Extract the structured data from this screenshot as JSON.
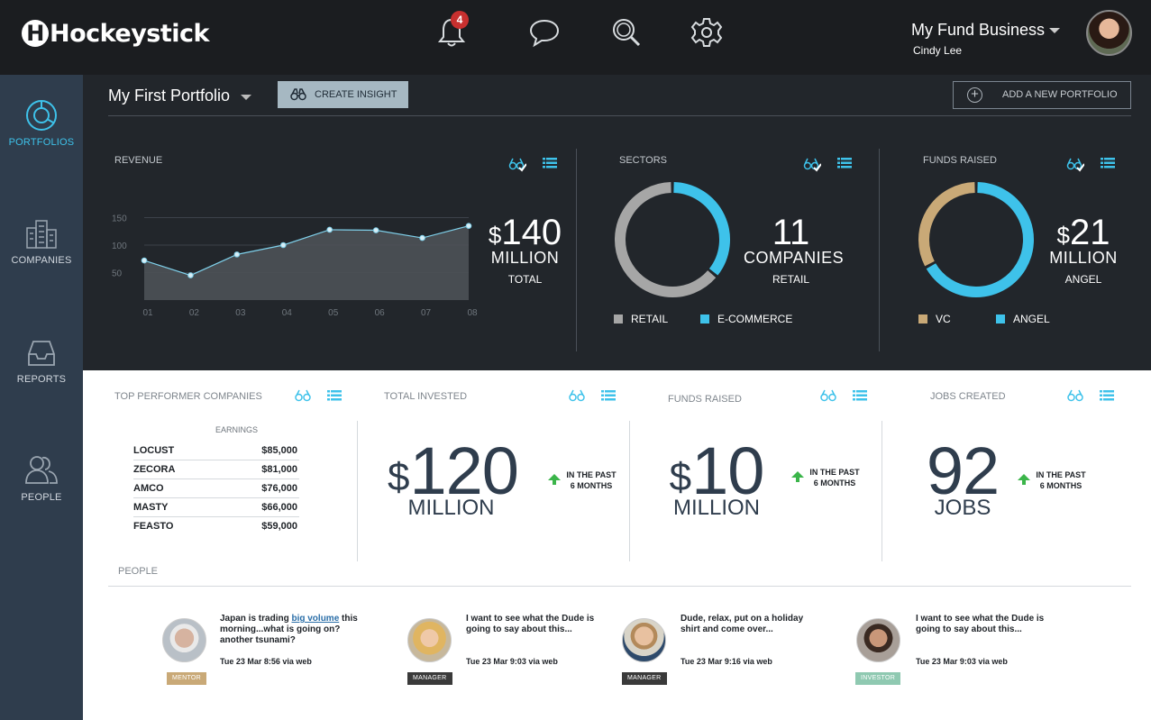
{
  "topbar": {
    "logo": "Hockeystick",
    "notification_count": "4",
    "account_name": "My Fund Business",
    "user_name": "Cindy Lee"
  },
  "sidebar": {
    "items": [
      {
        "label": "PORTFOLIOS",
        "icon": "portfolio-chart-icon"
      },
      {
        "label": "COMPANIES",
        "icon": "building-icon"
      },
      {
        "label": "REPORTS",
        "icon": "inbox-icon"
      },
      {
        "label": "PEOPLE",
        "icon": "people-icon"
      }
    ]
  },
  "toolbar": {
    "portfolio_title": "My First Portfolio",
    "create_insight": "CREATE INSIGHT",
    "add_portfolio": "ADD A NEW PORTFOLIO"
  },
  "revenue": {
    "title": "REVENUE",
    "currency": "$",
    "value": "140",
    "unit": "MILLION",
    "sub": "TOTAL"
  },
  "sectors": {
    "title": "SECTORS",
    "value": "11",
    "unit": "COMPANIES",
    "sub": "RETAIL",
    "legend": [
      {
        "label": "RETAIL",
        "color": "#a6a6a6"
      },
      {
        "label": "E-COMMERCE",
        "color": "#3ec2ea"
      }
    ]
  },
  "funds_top": {
    "title": "FUNDS RAISED",
    "currency": "$",
    "value": "21",
    "unit": "MILLION",
    "sub": "ANGEL",
    "legend": [
      {
        "label": "VC",
        "color": "#c9a977"
      },
      {
        "label": "ANGEL",
        "color": "#3ec2ea"
      }
    ]
  },
  "chart_data": [
    {
      "type": "area",
      "title": "REVENUE",
      "categories": [
        "01",
        "02",
        "03",
        "04",
        "05",
        "06",
        "07",
        "08"
      ],
      "values": [
        72,
        45,
        83,
        100,
        128,
        127,
        113,
        135
      ],
      "yticks": [
        50,
        100,
        150
      ],
      "ylim": [
        0,
        180
      ]
    },
    {
      "type": "pie",
      "title": "SECTORS",
      "labels": [
        "RETAIL",
        "E-COMMERCE"
      ],
      "values": [
        64,
        36
      ],
      "colors": [
        "#a6a6a6",
        "#3ec2ea"
      ]
    },
    {
      "type": "pie",
      "title": "FUNDS RAISED",
      "labels": [
        "VC",
        "ANGEL"
      ],
      "values": [
        33,
        67
      ],
      "colors": [
        "#c9a977",
        "#3ec2ea"
      ]
    }
  ],
  "top_performers": {
    "title": "TOP PERFORMER COMPANIES",
    "column": "EARNINGS",
    "rows": [
      {
        "name": "LOCUST",
        "earnings": "$85,000"
      },
      {
        "name": "ZECORA",
        "earnings": "$81,000"
      },
      {
        "name": "AMCO",
        "earnings": "$76,000"
      },
      {
        "name": "MASTY",
        "earnings": "$66,000"
      },
      {
        "name": "FEASTO",
        "earnings": "$59,000"
      }
    ]
  },
  "total_invested": {
    "title": "TOTAL INVESTED",
    "currency": "$",
    "value": "120",
    "unit": "MILLION",
    "trend_line1": "IN THE PAST",
    "trend_line2": "6 MONTHS"
  },
  "funds_raised": {
    "title": "FUNDS RAISED",
    "currency": "$",
    "value": "10",
    "unit": "MILLION",
    "trend_line1": "IN THE PAST",
    "trend_line2": "6 MONTHS"
  },
  "jobs_created": {
    "title": "JOBS CREATED",
    "value": "92",
    "unit": "JOBS",
    "trend_line1": "IN THE PAST",
    "trend_line2": "6 MONTHS"
  },
  "people": {
    "title": "PEOPLE",
    "items": [
      {
        "msg_before": "Japan is trading ",
        "msg_link": "big volume",
        "msg_after": " this morning...what is going on? another tsunami?",
        "time": "Tue 23 Mar 8:56 via web",
        "role": "MENTOR",
        "role_color": "#c9a977"
      },
      {
        "msg_before": "I want to see what the Dude is going to say about this...",
        "msg_link": "",
        "msg_after": "",
        "time": "Tue 23 Mar 9:03 via web",
        "role": "MANAGER",
        "role_color": "#3a3a3a"
      },
      {
        "msg_before": "Dude, relax, put on a holiday shirt and come over...",
        "msg_link": "",
        "msg_after": "",
        "time": "Tue 23 Mar 9:16 via web",
        "role": "MANAGER",
        "role_color": "#3a3a3a"
      },
      {
        "msg_before": "I want to see what the Dude is going to say about this...",
        "msg_link": "",
        "msg_after": "",
        "time": "Tue 23 Mar 9:03 via web",
        "role": "INVESTOR",
        "role_color": "#8fc9b1"
      }
    ]
  }
}
